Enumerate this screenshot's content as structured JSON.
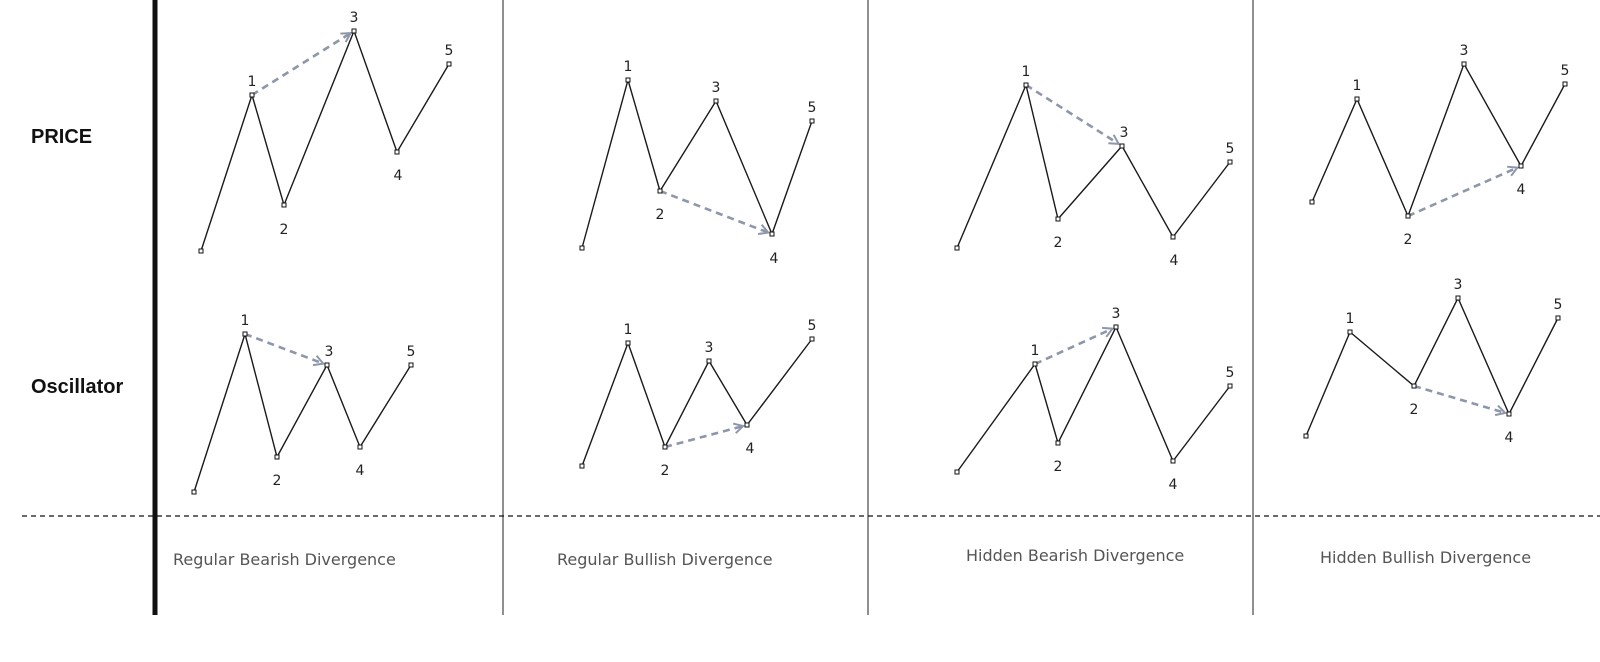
{
  "row_labels": {
    "price": "PRICE",
    "oscillator": "Oscillator"
  },
  "colors": {
    "line": "#1a1a1a",
    "arrow": "#8e97aa",
    "divider": "#222222",
    "caption": "#555555"
  },
  "panels": [
    {
      "id": "regular-bearish",
      "caption": "Regular Bearish Divergence",
      "price": {
        "points": [
          {
            "label": ""
          },
          {
            "label": "1"
          },
          {
            "label": "2"
          },
          {
            "label": "3"
          },
          {
            "label": "4"
          },
          {
            "label": "5"
          }
        ],
        "arrow_from": 1,
        "arrow_to": 3
      },
      "oscillator": {
        "points": [
          {
            "label": ""
          },
          {
            "label": "1"
          },
          {
            "label": "2"
          },
          {
            "label": "3"
          },
          {
            "label": "4"
          },
          {
            "label": "5"
          }
        ],
        "arrow_from": 1,
        "arrow_to": 3
      }
    },
    {
      "id": "regular-bullish",
      "caption": "Regular Bullish Divergence",
      "price": {
        "points": [
          {
            "label": ""
          },
          {
            "label": "1"
          },
          {
            "label": "2"
          },
          {
            "label": "3"
          },
          {
            "label": "4"
          },
          {
            "label": "5"
          }
        ],
        "arrow_from": 2,
        "arrow_to": 4
      },
      "oscillator": {
        "points": [
          {
            "label": ""
          },
          {
            "label": "1"
          },
          {
            "label": "2"
          },
          {
            "label": "3"
          },
          {
            "label": "4"
          },
          {
            "label": "5"
          }
        ],
        "arrow_from": 2,
        "arrow_to": 4
      }
    },
    {
      "id": "hidden-bearish",
      "caption": "Hidden Bearish Divergence",
      "price": {
        "points": [
          {
            "label": ""
          },
          {
            "label": "1"
          },
          {
            "label": "2"
          },
          {
            "label": "3"
          },
          {
            "label": "4"
          },
          {
            "label": "5"
          }
        ],
        "arrow_from": 1,
        "arrow_to": 3
      },
      "oscillator": {
        "points": [
          {
            "label": ""
          },
          {
            "label": "1"
          },
          {
            "label": "2"
          },
          {
            "label": "3"
          },
          {
            "label": "4"
          },
          {
            "label": "5"
          }
        ],
        "arrow_from": 1,
        "arrow_to": 3
      }
    },
    {
      "id": "hidden-bullish",
      "caption": "Hidden Bullish Divergence",
      "price": {
        "points": [
          {
            "label": ""
          },
          {
            "label": "1"
          },
          {
            "label": "2"
          },
          {
            "label": "3"
          },
          {
            "label": "4"
          },
          {
            "label": "5"
          }
        ],
        "arrow_from": 2,
        "arrow_to": 4
      },
      "oscillator": {
        "points": [
          {
            "label": ""
          },
          {
            "label": "1"
          },
          {
            "label": "2"
          },
          {
            "label": "3"
          },
          {
            "label": "4"
          },
          {
            "label": "5"
          }
        ],
        "arrow_from": 2,
        "arrow_to": 4
      }
    }
  ]
}
